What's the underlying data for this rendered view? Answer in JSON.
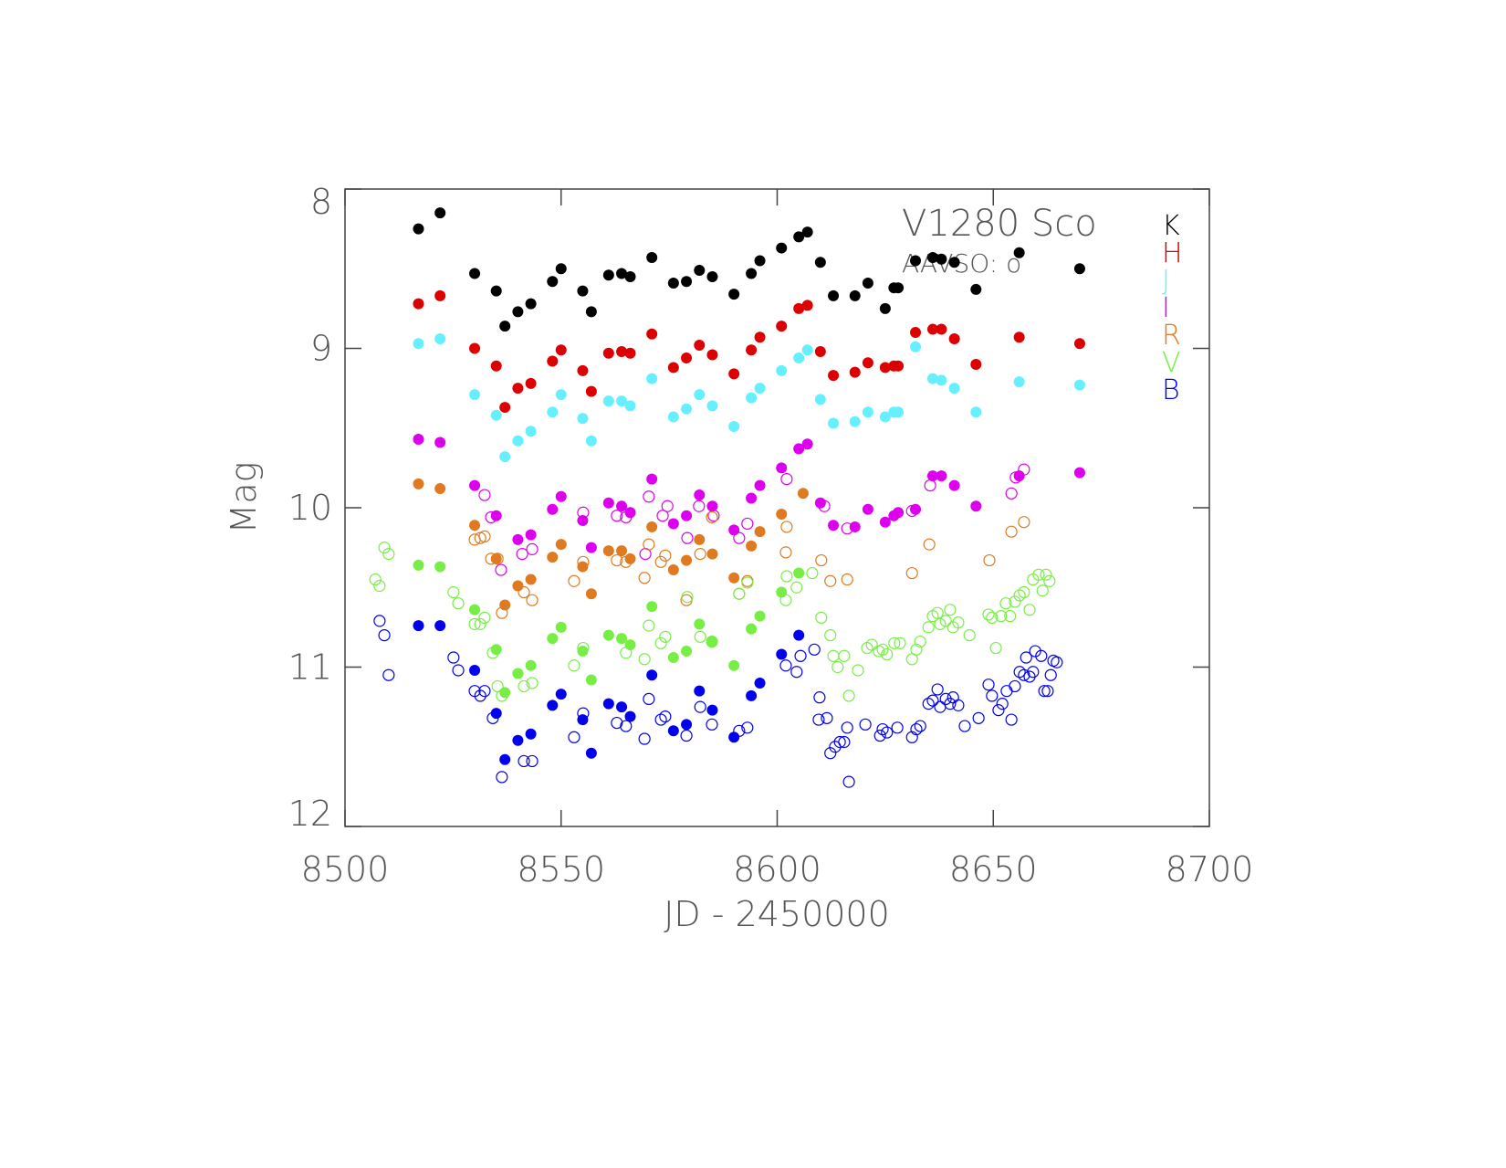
{
  "chart_data": {
    "type": "scatter",
    "title": "V1280 Sco",
    "subtitle": "AAVSO: o",
    "xlabel": "JD - 2450000",
    "ylabel": "Mag",
    "xlim": [
      8500,
      8700
    ],
    "xticks": [
      8500,
      8550,
      8600,
      8650,
      8700
    ],
    "ylim": [
      8,
      12
    ],
    "yticks": [
      8,
      9,
      10,
      11,
      12
    ],
    "y_inverted": true,
    "grid": false,
    "legend": "top-right",
    "series": [
      {
        "name": "K",
        "color": "#000000",
        "x": [
          8517,
          8522,
          8530,
          8535,
          8537,
          8540,
          8543,
          8548,
          8550,
          8555,
          8557,
          8561,
          8564,
          8566,
          8571,
          8576,
          8579,
          8582,
          8585,
          8590,
          8594,
          8596,
          8601,
          8605,
          8607,
          8610,
          8613,
          8618,
          8621,
          8625,
          8627,
          8628,
          8632,
          8636,
          8638,
          8641,
          8646,
          8656,
          8670
        ],
        "values": [
          8.25,
          8.15,
          8.53,
          8.64,
          8.86,
          8.77,
          8.72,
          8.58,
          8.5,
          8.64,
          8.77,
          8.54,
          8.53,
          8.55,
          8.43,
          8.59,
          8.58,
          8.51,
          8.55,
          8.66,
          8.53,
          8.45,
          8.37,
          8.3,
          8.27,
          8.46,
          8.67,
          8.67,
          8.59,
          8.75,
          8.62,
          8.62,
          8.45,
          8.43,
          8.44,
          8.46,
          8.63,
          8.4,
          8.5
        ]
      },
      {
        "name": "H",
        "color": "#dd0000",
        "x": [
          8517,
          8522,
          8530,
          8535,
          8537,
          8540,
          8543,
          8548,
          8550,
          8555,
          8557,
          8561,
          8564,
          8566,
          8571,
          8576,
          8579,
          8582,
          8585,
          8590,
          8594,
          8596,
          8601,
          8605,
          8607,
          8610,
          8613,
          8618,
          8621,
          8625,
          8627,
          8628,
          8632,
          8636,
          8638,
          8641,
          8646,
          8656,
          8670
        ],
        "values": [
          8.72,
          8.67,
          9.0,
          9.11,
          9.37,
          9.25,
          9.22,
          9.08,
          9.01,
          9.14,
          9.27,
          9.03,
          9.02,
          9.03,
          8.91,
          9.12,
          9.06,
          8.98,
          9.04,
          9.16,
          9.01,
          8.93,
          8.86,
          8.75,
          8.73,
          9.02,
          9.17,
          9.15,
          9.09,
          9.12,
          9.11,
          9.11,
          8.9,
          8.88,
          8.88,
          8.94,
          9.1,
          8.93,
          8.97
        ]
      },
      {
        "name": "J",
        "color": "#66f0ff",
        "x": [
          8517,
          8522,
          8530,
          8535,
          8537,
          8540,
          8543,
          8548,
          8550,
          8555,
          8557,
          8561,
          8564,
          8566,
          8571,
          8576,
          8579,
          8582,
          8585,
          8590,
          8594,
          8596,
          8601,
          8605,
          8607,
          8610,
          8613,
          8618,
          8621,
          8625,
          8627,
          8628,
          8632,
          8636,
          8638,
          8641,
          8646,
          8656,
          8670
        ],
        "values": [
          8.97,
          8.94,
          9.29,
          9.42,
          9.68,
          9.58,
          9.52,
          9.4,
          9.29,
          9.44,
          9.58,
          9.33,
          9.33,
          9.36,
          9.19,
          9.43,
          9.38,
          9.29,
          9.36,
          9.49,
          9.31,
          9.25,
          9.14,
          9.06,
          9.01,
          9.32,
          9.47,
          9.46,
          9.4,
          9.43,
          9.4,
          9.4,
          8.99,
          9.19,
          9.2,
          9.25,
          9.4,
          9.21,
          9.23
        ]
      },
      {
        "name": "I",
        "color": "#dd00ee",
        "x": [
          8517,
          8522,
          8530,
          8535,
          8540,
          8543,
          8548,
          8550,
          8555,
          8557,
          8561,
          8564,
          8566,
          8571,
          8576,
          8579,
          8582,
          8585,
          8590,
          8594,
          8596,
          8601,
          8605,
          8607,
          8610,
          8613,
          8618,
          8621,
          8625,
          8627,
          8628,
          8632,
          8636,
          8638,
          8641,
          8646,
          8656,
          8670
        ],
        "values": [
          9.57,
          9.59,
          9.86,
          10.05,
          10.2,
          10.17,
          10.01,
          9.93,
          10.08,
          10.25,
          9.97,
          9.99,
          10.03,
          9.82,
          10.1,
          10.05,
          9.92,
          9.99,
          10.14,
          9.94,
          9.86,
          9.75,
          9.63,
          9.6,
          9.97,
          10.11,
          10.12,
          10.01,
          10.09,
          10.05,
          10.03,
          10.01,
          9.8,
          9.8,
          9.86,
          9.99,
          9.8,
          9.78
        ],
        "open_x": [
          8532.3,
          8533.8,
          8536.1,
          8541.0,
          8543.3,
          8555.1,
          8562.9,
          8565.0,
          8569.5,
          8570.3,
          8573.5,
          8574.6,
          8579.2,
          8581.9,
          8585.3,
          8591.2,
          8593.1,
          8602.2,
          8610.9,
          8616.2,
          8631.2,
          8635.4,
          8654.2,
          8655.2,
          8657.1
        ],
        "open_values": [
          9.92,
          10.06,
          10.39,
          10.29,
          10.26,
          10.03,
          10.05,
          10.06,
          10.29,
          9.93,
          10.05,
          9.99,
          10.19,
          9.99,
          10.05,
          10.19,
          10.1,
          9.82,
          9.99,
          10.13,
          10.02,
          9.86,
          9.91,
          9.81,
          9.76
        ]
      },
      {
        "name": "R",
        "color": "#e07a20",
        "x": [
          8517,
          8522,
          8530,
          8535,
          8537,
          8540,
          8543,
          8548,
          8550,
          8555,
          8557,
          8561,
          8564,
          8566,
          8571,
          8576,
          8579,
          8582,
          8585,
          8590,
          8594,
          8596,
          8601,
          8606
        ],
        "values": [
          9.85,
          9.88,
          10.11,
          10.32,
          10.61,
          10.49,
          10.45,
          10.31,
          10.23,
          10.37,
          10.54,
          10.27,
          10.27,
          10.32,
          10.12,
          10.39,
          10.33,
          10.2,
          10.29,
          10.44,
          10.24,
          10.15,
          10.04,
          9.91
        ],
        "open_x": [
          8530.0,
          8531.3,
          8532.3,
          8533.8,
          8535.3,
          8536.3,
          8541.4,
          8543.3,
          8553.0,
          8555.1,
          8562.9,
          8565.0,
          8569.3,
          8570.3,
          8573.1,
          8574.1,
          8579.0,
          8582.2,
          8584.9,
          8591.2,
          8593.1,
          8602.0,
          8602.2,
          8610.2,
          8612.3,
          8616.2,
          8631.2,
          8635.2,
          8649.1,
          8654.2,
          8657.1
        ],
        "open_values": [
          10.2,
          10.19,
          10.18,
          10.32,
          10.32,
          10.66,
          10.53,
          10.58,
          10.46,
          10.34,
          10.33,
          10.34,
          10.44,
          10.23,
          10.34,
          10.3,
          10.58,
          10.29,
          10.06,
          10.54,
          10.46,
          10.28,
          10.12,
          10.33,
          10.46,
          10.45,
          10.41,
          10.23,
          10.33,
          10.15,
          10.09
        ]
      },
      {
        "name": "V",
        "color": "#77ee44",
        "x": [
          8517,
          8522,
          8530,
          8535,
          8537,
          8540,
          8543,
          8548,
          8550,
          8555,
          8557,
          8561,
          8564,
          8566,
          8571,
          8576,
          8579,
          8582,
          8585,
          8590,
          8594,
          8596,
          8601,
          8605
        ],
        "values": [
          10.36,
          10.37,
          10.64,
          10.89,
          11.16,
          11.04,
          10.99,
          10.82,
          10.75,
          10.9,
          11.08,
          10.8,
          10.82,
          10.86,
          10.62,
          10.94,
          10.9,
          10.73,
          10.84,
          10.99,
          10.76,
          10.68,
          10.53,
          10.41
        ],
        "open_x": [
          8507.0,
          8508.0,
          8509.1,
          8510.1,
          8525.1,
          8526.2,
          8530.0,
          8531.3,
          8532.3,
          8534.2,
          8535.3,
          8536.3,
          8541.4,
          8543.3,
          8553.0,
          8555.1,
          8565.0,
          8569.3,
          8570.3,
          8573.1,
          8574.1,
          8579.2,
          8582.2,
          8584.9,
          8591.2,
          8593.1,
          8602.0,
          8602.2,
          8604.5,
          8608.1,
          8610.2,
          8612.3,
          8613.0,
          8614.0,
          8615.5,
          8616.6,
          8618.7,
          8620.8,
          8621.9,
          8623.5,
          8624.4,
          8625.4,
          8627.1,
          8628.4,
          8631.2,
          8632.2,
          8633.1,
          8635.0,
          8636.0,
          8637.1,
          8637.7,
          8639.0,
          8640.0,
          8640.7,
          8641.9,
          8644.5,
          8648.9,
          8649.7,
          8650.6,
          8651.8,
          8652.9,
          8653.9,
          8655.0,
          8656.1,
          8657.1,
          8658.4,
          8659.2,
          8660.5,
          8661.4,
          8662.2,
          8663.0
        ],
        "open_values": [
          10.45,
          10.49,
          10.25,
          10.29,
          10.53,
          10.6,
          10.73,
          10.73,
          10.69,
          10.91,
          11.12,
          11.18,
          11.12,
          11.1,
          10.99,
          10.88,
          10.91,
          10.95,
          10.74,
          10.85,
          10.81,
          10.56,
          10.81,
          10.84,
          10.54,
          10.47,
          10.58,
          10.43,
          10.5,
          10.41,
          10.69,
          10.8,
          10.93,
          11.0,
          10.93,
          11.18,
          11.02,
          10.88,
          10.86,
          10.9,
          10.89,
          10.92,
          10.85,
          10.85,
          10.95,
          10.89,
          10.84,
          10.75,
          10.68,
          10.66,
          10.73,
          10.71,
          10.64,
          10.75,
          10.72,
          10.8,
          10.67,
          10.69,
          10.88,
          10.68,
          10.6,
          10.68,
          10.59,
          10.55,
          10.53,
          10.64,
          10.45,
          10.42,
          10.52,
          10.42,
          10.46
        ]
      },
      {
        "name": "B",
        "color": "#0000ee",
        "x": [
          8517,
          8522,
          8530,
          8535,
          8537,
          8540,
          8543,
          8548,
          8550,
          8555,
          8557,
          8561,
          8564,
          8566,
          8571,
          8576,
          8579,
          8582,
          8585,
          8590,
          8594,
          8596,
          8601,
          8605
        ],
        "values": [
          10.74,
          10.74,
          11.02,
          11.29,
          11.58,
          11.46,
          11.42,
          11.24,
          11.17,
          11.33,
          11.54,
          11.23,
          11.25,
          11.31,
          11.05,
          11.4,
          11.36,
          11.15,
          11.27,
          11.44,
          11.18,
          11.1,
          10.92,
          10.8
        ],
        "open_x": [
          8508.0,
          8509.1,
          8510.1,
          8525.1,
          8526.2,
          8530.0,
          8531.3,
          8532.3,
          8534.2,
          8536.3,
          8541.4,
          8543.3,
          8553.0,
          8555.1,
          8562.9,
          8565.0,
          8569.3,
          8570.3,
          8573.1,
          8574.1,
          8579.0,
          8582.2,
          8584.9,
          8591.2,
          8593.1,
          8602.0,
          8604.5,
          8605.4,
          8608.6,
          8609.8,
          8609.6,
          8611.5,
          8612.3,
          8613.4,
          8614.5,
          8615.5,
          8616.2,
          8616.6,
          8620.4,
          8623.8,
          8624.4,
          8625.4,
          8627.8,
          8631.2,
          8632.2,
          8633.1,
          8635.0,
          8636.0,
          8637.1,
          8637.7,
          8639.0,
          8640.0,
          8640.7,
          8641.9,
          8643.4,
          8646.6,
          8648.9,
          8649.7,
          8651.2,
          8652.1,
          8653.1,
          8654.2,
          8655.0,
          8656.1,
          8657.1,
          8657.6,
          8658.4,
          8659.2,
          8659.7,
          8661.1,
          8661.8,
          8662.6,
          8663.3,
          8663.9,
          8664.7
        ],
        "open_values": [
          10.71,
          10.8,
          11.05,
          10.94,
          11.02,
          11.15,
          11.18,
          11.15,
          11.32,
          11.69,
          11.59,
          11.59,
          11.44,
          11.29,
          11.35,
          11.37,
          11.45,
          11.2,
          11.33,
          11.31,
          11.43,
          11.25,
          11.36,
          11.4,
          11.38,
          10.99,
          11.03,
          10.93,
          10.89,
          11.19,
          11.33,
          11.32,
          11.54,
          11.5,
          11.47,
          11.47,
          11.38,
          11.72,
          11.36,
          11.43,
          11.39,
          11.41,
          11.38,
          11.44,
          11.39,
          11.37,
          11.23,
          11.21,
          11.14,
          11.25,
          11.2,
          11.23,
          11.19,
          11.24,
          11.37,
          11.32,
          11.11,
          11.18,
          11.27,
          11.23,
          11.15,
          11.33,
          11.12,
          11.03,
          11.05,
          10.94,
          11.06,
          11.03,
          10.9,
          10.93,
          11.15,
          11.15,
          11.05,
          10.96,
          10.97
        ]
      }
    ]
  }
}
